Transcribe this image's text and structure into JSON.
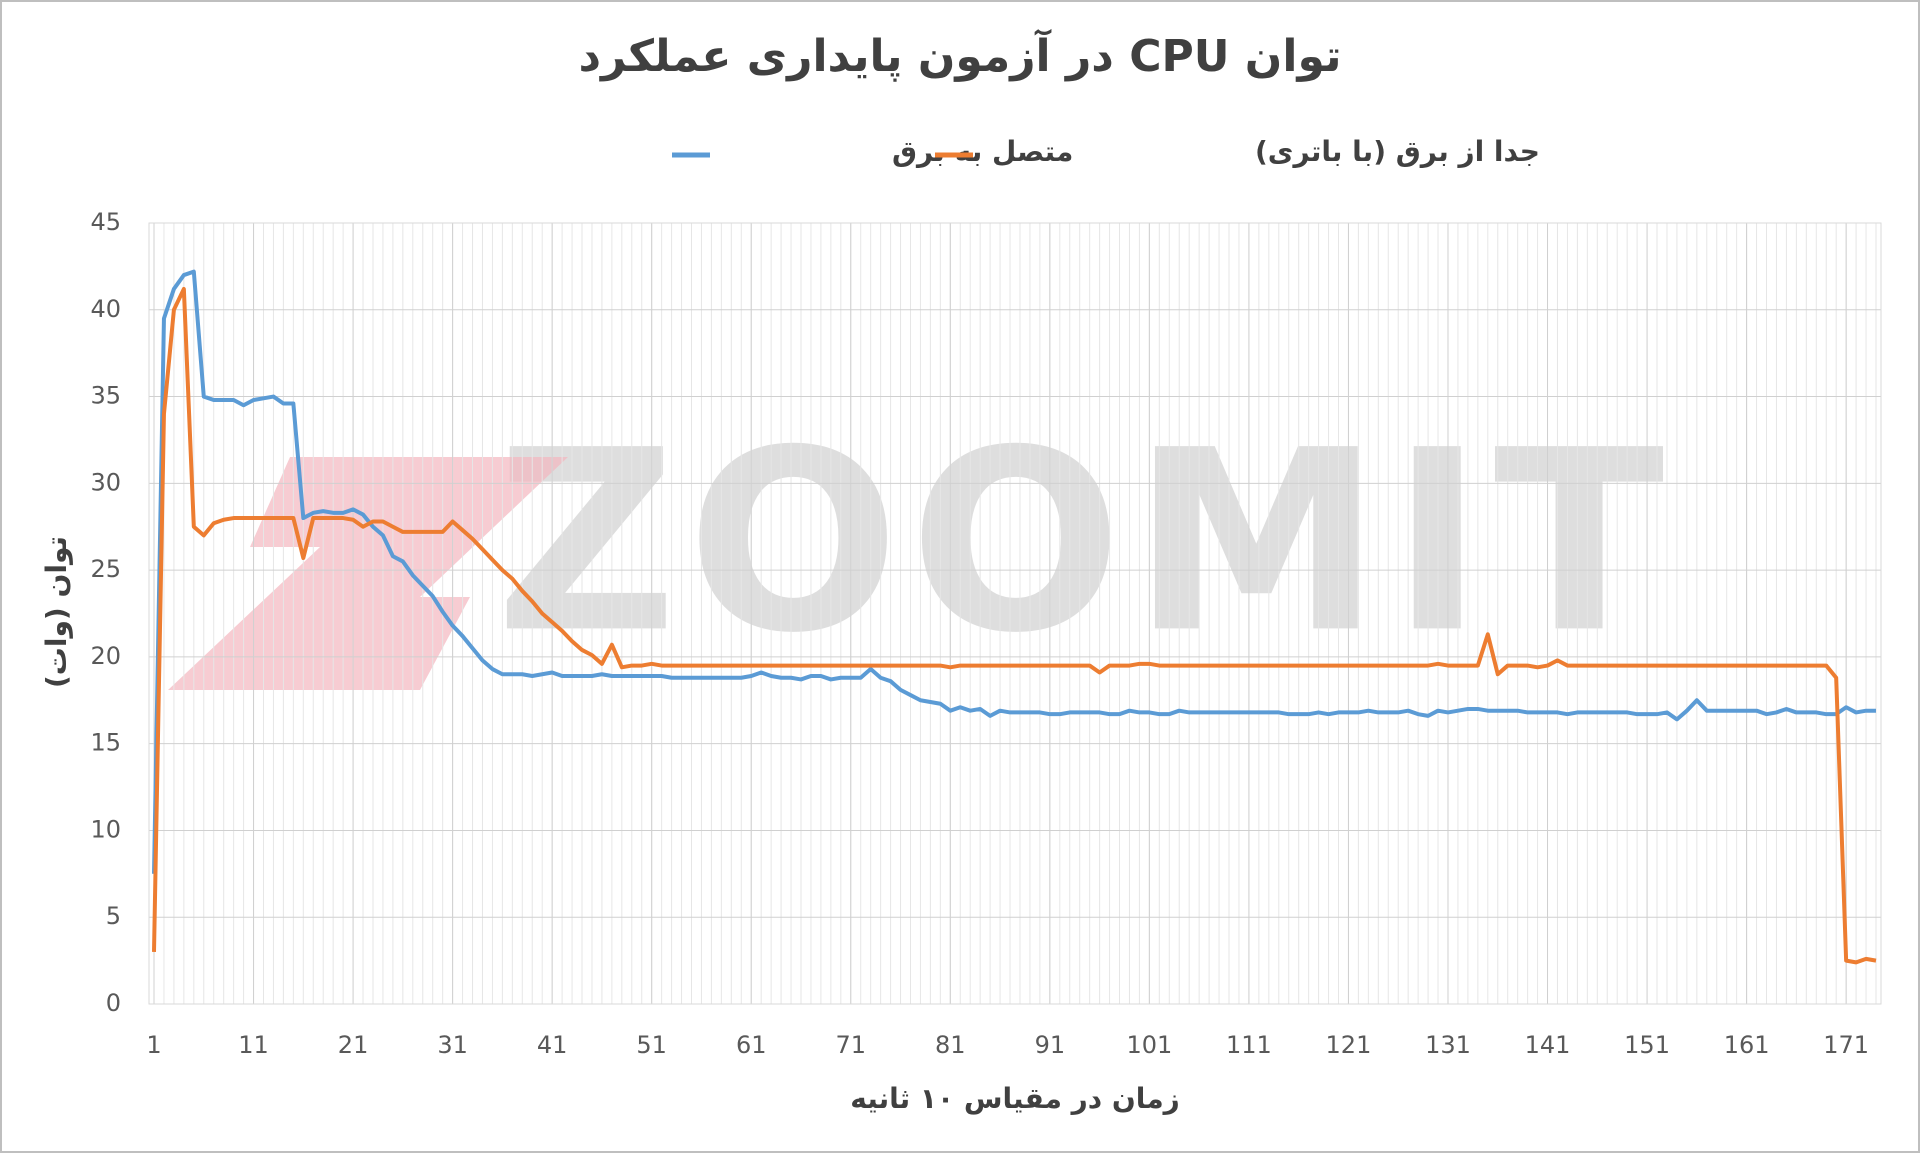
{
  "watermark": "ZOOMIT",
  "chart_data": {
    "type": "line",
    "title": "توان CPU در آزمون پایداری عملکرد",
    "x_label": "زمان در مقیاس ۱۰ ثانیه",
    "y_label": "توان (وات)",
    "x": [
      1,
      2,
      3,
      4,
      5,
      6,
      7,
      8,
      9,
      10,
      11,
      12,
      13,
      14,
      15,
      16,
      17,
      18,
      19,
      20,
      21,
      22,
      23,
      24,
      25,
      26,
      27,
      28,
      29,
      30,
      31,
      32,
      33,
      34,
      35,
      36,
      37,
      38,
      39,
      40,
      41,
      42,
      43,
      44,
      45,
      46,
      47,
      48,
      49,
      50,
      51,
      52,
      53,
      54,
      55,
      56,
      57,
      58,
      59,
      60,
      61,
      62,
      63,
      64,
      65,
      66,
      67,
      68,
      69,
      70,
      71,
      72,
      73,
      74,
      75,
      76,
      77,
      78,
      79,
      80,
      81,
      82,
      83,
      84,
      85,
      86,
      87,
      88,
      89,
      90,
      91,
      92,
      93,
      94,
      95,
      96,
      97,
      98,
      99,
      100,
      101,
      102,
      103,
      104,
      105,
      106,
      107,
      108,
      109,
      110,
      111,
      112,
      113,
      114,
      115,
      116,
      117,
      118,
      119,
      120,
      121,
      122,
      123,
      124,
      125,
      126,
      127,
      128,
      129,
      130,
      131,
      132,
      133,
      134,
      135,
      136,
      137,
      138,
      139,
      140,
      141,
      142,
      143,
      144,
      145,
      146,
      147,
      148,
      149,
      150,
      151,
      152,
      153,
      154,
      155,
      156,
      157,
      158,
      159,
      160,
      161,
      162,
      163,
      164,
      165,
      166,
      167,
      168,
      169,
      170,
      171,
      172,
      173,
      174
    ],
    "series": [
      {
        "name": "متصل به برق",
        "color": "#5b9bd5",
        "values": [
          7.5,
          39.5,
          41.2,
          42,
          42.2,
          35,
          34.8,
          34.8,
          34.8,
          34.5,
          34.8,
          34.9,
          35,
          34.6,
          34.6,
          28,
          28.3,
          28.4,
          28.3,
          28.3,
          28.5,
          28.2,
          27.5,
          27,
          25.8,
          25.5,
          24.7,
          24.1,
          23.5,
          22.6,
          21.8,
          21.2,
          20.5,
          19.8,
          19.3,
          19,
          19,
          19,
          18.9,
          19,
          19.1,
          18.9,
          18.9,
          18.9,
          18.9,
          19,
          18.9,
          18.9,
          18.9,
          18.9,
          18.9,
          18.9,
          18.8,
          18.8,
          18.8,
          18.8,
          18.8,
          18.8,
          18.8,
          18.8,
          18.9,
          19.1,
          18.9,
          18.8,
          18.8,
          18.7,
          18.9,
          18.9,
          18.7,
          18.8,
          18.8,
          18.8,
          19.3,
          18.8,
          18.6,
          18.1,
          17.8,
          17.5,
          17.4,
          17.3,
          16.9,
          17.1,
          16.9,
          17,
          16.6,
          16.9,
          16.8,
          16.8,
          16.8,
          16.8,
          16.7,
          16.7,
          16.8,
          16.8,
          16.8,
          16.8,
          16.7,
          16.7,
          16.9,
          16.8,
          16.8,
          16.7,
          16.7,
          16.9,
          16.8,
          16.8,
          16.8,
          16.8,
          16.8,
          16.8,
          16.8,
          16.8,
          16.8,
          16.8,
          16.7,
          16.7,
          16.7,
          16.8,
          16.7,
          16.8,
          16.8,
          16.8,
          16.9,
          16.8,
          16.8,
          16.8,
          16.9,
          16.7,
          16.6,
          16.9,
          16.8,
          16.9,
          17,
          17,
          16.9,
          16.9,
          16.9,
          16.9,
          16.8,
          16.8,
          16.8,
          16.8,
          16.7,
          16.8,
          16.8,
          16.8,
          16.8,
          16.8,
          16.8,
          16.7,
          16.7,
          16.7,
          16.8,
          16.4,
          16.9,
          17.5,
          16.9,
          16.9,
          16.9,
          16.9,
          16.9,
          16.9,
          16.7,
          16.8,
          17,
          16.8,
          16.8,
          16.8,
          16.7,
          16.7,
          17.1,
          16.8,
          16.9,
          16.9
        ]
      },
      {
        "name": "جدا از برق (با باتری)",
        "color": "#ed7d31",
        "values": [
          3,
          34,
          40,
          41.2,
          27.5,
          27,
          27.7,
          27.9,
          28,
          28,
          28,
          28,
          28,
          28,
          28,
          25.7,
          28,
          28,
          28,
          28,
          27.9,
          27.5,
          27.8,
          27.8,
          27.5,
          27.2,
          27.2,
          27.2,
          27.2,
          27.2,
          27.8,
          27.3,
          26.8,
          26.2,
          25.6,
          25,
          24.5,
          23.8,
          23.2,
          22.5,
          22,
          21.5,
          20.9,
          20.4,
          20.1,
          19.6,
          20.7,
          19.4,
          19.5,
          19.5,
          19.6,
          19.5,
          19.5,
          19.5,
          19.5,
          19.5,
          19.5,
          19.5,
          19.5,
          19.5,
          19.5,
          19.5,
          19.5,
          19.5,
          19.5,
          19.5,
          19.5,
          19.5,
          19.5,
          19.5,
          19.5,
          19.5,
          19.5,
          19.5,
          19.5,
          19.5,
          19.5,
          19.5,
          19.5,
          19.5,
          19.4,
          19.5,
          19.5,
          19.5,
          19.5,
          19.5,
          19.5,
          19.5,
          19.5,
          19.5,
          19.5,
          19.5,
          19.5,
          19.5,
          19.5,
          19.1,
          19.5,
          19.5,
          19.5,
          19.6,
          19.6,
          19.5,
          19.5,
          19.5,
          19.5,
          19.5,
          19.5,
          19.5,
          19.5,
          19.5,
          19.5,
          19.5,
          19.5,
          19.5,
          19.5,
          19.5,
          19.5,
          19.5,
          19.5,
          19.5,
          19.5,
          19.5,
          19.5,
          19.5,
          19.5,
          19.5,
          19.5,
          19.5,
          19.5,
          19.6,
          19.5,
          19.5,
          19.5,
          19.5,
          21.3,
          19,
          19.5,
          19.5,
          19.5,
          19.4,
          19.5,
          19.8,
          19.5,
          19.5,
          19.5,
          19.5,
          19.5,
          19.5,
          19.5,
          19.5,
          19.5,
          19.5,
          19.5,
          19.5,
          19.5,
          19.5,
          19.5,
          19.5,
          19.5,
          19.5,
          19.5,
          19.5,
          19.5,
          19.5,
          19.5,
          19.5,
          19.5,
          19.5,
          19.5,
          18.8,
          2.5,
          2.4,
          2.6,
          2.5
        ]
      }
    ],
    "xlim": [
      1,
      174
    ],
    "xticks": [
      1,
      11,
      21,
      31,
      41,
      51,
      61,
      71,
      81,
      91,
      101,
      111,
      121,
      131,
      141,
      151,
      161,
      171
    ],
    "ylim": [
      0,
      45
    ],
    "yticks": [
      0,
      5,
      10,
      15,
      20,
      25,
      30,
      35,
      40,
      45
    ],
    "grid": true,
    "minor_grid": true
  }
}
